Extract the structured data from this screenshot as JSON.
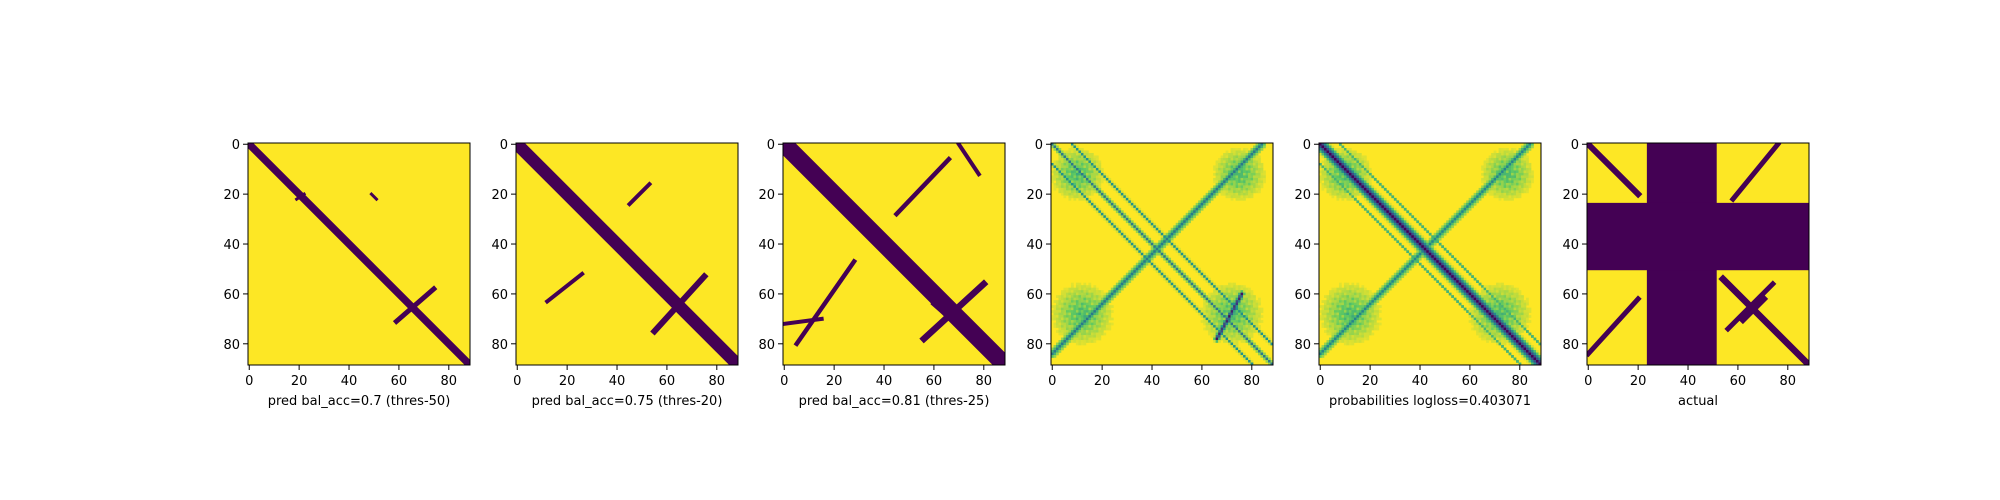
{
  "colors": {
    "background": "#fde725",
    "foreground": "#440154",
    "mid": "#21918c",
    "light": "#5ec962"
  },
  "chart_data": [
    {
      "type": "heatmap",
      "rendering": "binary",
      "xlabel": "pred bal_acc=0.7 (thres-50)",
      "xticks": [
        0,
        20,
        40,
        60,
        80
      ],
      "yticks": [
        0,
        20,
        40,
        60,
        80
      ],
      "xlim": [
        0,
        89
      ],
      "ylim": [
        89,
        0
      ],
      "colorscale": "viridis",
      "strokes": [
        {
          "from": [
            0,
            0
          ],
          "to": [
            88,
            88
          ],
          "width": 1.5
        },
        {
          "from": [
            19,
            22
          ],
          "to": [
            22,
            20
          ],
          "width": 0.6
        },
        {
          "from": [
            49,
            20
          ],
          "to": [
            51,
            22
          ],
          "width": 0.6
        },
        {
          "from": [
            59,
            71
          ],
          "to": [
            74,
            58
          ],
          "width": 1.0
        }
      ]
    },
    {
      "type": "heatmap",
      "rendering": "binary",
      "xlabel": "pred bal_acc=0.75 (thres-20)",
      "xticks": [
        0,
        20,
        40,
        60,
        80
      ],
      "yticks": [
        0,
        20,
        40,
        60,
        80
      ],
      "xlim": [
        0,
        89
      ],
      "ylim": [
        89,
        0
      ],
      "colorscale": "viridis",
      "strokes": [
        {
          "from": [
            0,
            0
          ],
          "to": [
            88,
            88
          ],
          "width": 2.5
        },
        {
          "from": [
            45,
            24
          ],
          "to": [
            53,
            16
          ],
          "width": 0.8
        },
        {
          "from": [
            12,
            63
          ],
          "to": [
            26,
            52
          ],
          "width": 0.8
        },
        {
          "from": [
            55,
            75
          ],
          "to": [
            75,
            53
          ],
          "width": 1.2
        },
        {
          "from": [
            60,
            62
          ],
          "to": [
            72,
            74
          ],
          "width": 1.0
        }
      ]
    },
    {
      "type": "heatmap",
      "rendering": "binary",
      "xlabel": "pred bal_acc=0.81 (thres-25)",
      "xticks": [
        0,
        20,
        40,
        60,
        80
      ],
      "yticks": [
        0,
        20,
        40,
        60,
        80
      ],
      "xlim": [
        0,
        89
      ],
      "ylim": [
        89,
        0
      ],
      "colorscale": "viridis",
      "strokes": [
        {
          "from": [
            0,
            0
          ],
          "to": [
            88,
            88
          ],
          "width": 3.5
        },
        {
          "from": [
            45,
            28
          ],
          "to": [
            66,
            6
          ],
          "width": 0.9
        },
        {
          "from": [
            5,
            80
          ],
          "to": [
            28,
            47
          ],
          "width": 0.9
        },
        {
          "from": [
            56,
            78
          ],
          "to": [
            80,
            56
          ],
          "width": 1.3
        },
        {
          "from": [
            60,
            64
          ],
          "to": [
            76,
            78
          ],
          "width": 1.0
        },
        {
          "from": [
            0,
            72
          ],
          "to": [
            15,
            70
          ],
          "width": 0.8
        },
        {
          "from": [
            70,
            0
          ],
          "to": [
            78,
            12
          ],
          "width": 0.8
        }
      ]
    },
    {
      "type": "heatmap",
      "rendering": "probability",
      "xlabel": "",
      "xticks": [
        0,
        20,
        40,
        60,
        80
      ],
      "yticks": [
        0,
        20,
        40,
        60,
        80
      ],
      "xlim": [
        0,
        89
      ],
      "ylim": [
        89,
        0
      ],
      "colorscale": "viridis",
      "strokes": [
        {
          "from": [
            0,
            0
          ],
          "to": [
            88,
            88
          ],
          "width": 1.0,
          "intensity": 0.55
        },
        {
          "from": [
            8,
            0
          ],
          "to": [
            88,
            80
          ],
          "width": 0.8,
          "intensity": 0.45
        },
        {
          "from": [
            0,
            8
          ],
          "to": [
            80,
            88
          ],
          "width": 0.8,
          "intensity": 0.45
        },
        {
          "from": [
            0,
            84
          ],
          "to": [
            84,
            0
          ],
          "width": 2.0,
          "intensity": 0.55
        },
        {
          "from": [
            66,
            78
          ],
          "to": [
            76,
            60
          ],
          "width": 1.5,
          "intensity": 0.9
        }
      ],
      "blobs": [
        {
          "center": [
            10,
            12
          ],
          "radius": 12
        },
        {
          "center": [
            75,
            12
          ],
          "radius": 12
        },
        {
          "center": [
            12,
            68
          ],
          "radius": 14
        },
        {
          "center": [
            72,
            68
          ],
          "radius": 14
        }
      ]
    },
    {
      "type": "heatmap",
      "rendering": "probability",
      "xlabel": "probabilities logloss=0.403071",
      "xticks": [
        0,
        20,
        40,
        60,
        80
      ],
      "yticks": [
        0,
        20,
        40,
        60,
        80
      ],
      "xlim": [
        0,
        89
      ],
      "ylim": [
        89,
        0
      ],
      "colorscale": "viridis",
      "strokes": [
        {
          "from": [
            0,
            0
          ],
          "to": [
            88,
            88
          ],
          "width": 3.0,
          "intensity": 1.0
        },
        {
          "from": [
            0,
            84
          ],
          "to": [
            84,
            0
          ],
          "width": 2.0,
          "intensity": 0.5
        },
        {
          "from": [
            8,
            0
          ],
          "to": [
            88,
            80
          ],
          "width": 0.6,
          "intensity": 0.3
        },
        {
          "from": [
            0,
            8
          ],
          "to": [
            80,
            88
          ],
          "width": 0.6,
          "intensity": 0.3
        }
      ],
      "blobs": [
        {
          "center": [
            10,
            12
          ],
          "radius": 12
        },
        {
          "center": [
            75,
            12
          ],
          "radius": 12
        },
        {
          "center": [
            12,
            68
          ],
          "radius": 14
        },
        {
          "center": [
            72,
            68
          ],
          "radius": 14
        }
      ]
    },
    {
      "type": "heatmap",
      "rendering": "binary",
      "xlabel": "actual",
      "xticks": [
        0,
        20,
        40,
        60,
        80
      ],
      "yticks": [
        0,
        20,
        40,
        60,
        80
      ],
      "xlim": [
        0,
        89
      ],
      "ylim": [
        89,
        0
      ],
      "colorscale": "viridis",
      "bands": [
        {
          "axis": "x",
          "from": 24,
          "to": 52
        },
        {
          "axis": "y",
          "from": 24,
          "to": 51
        }
      ],
      "strokes": [
        {
          "from": [
            0,
            0
          ],
          "to": [
            20,
            20
          ],
          "width": 1.2
        },
        {
          "from": [
            58,
            22
          ],
          "to": [
            76,
            0
          ],
          "width": 1.0
        },
        {
          "from": [
            0,
            84
          ],
          "to": [
            20,
            62
          ],
          "width": 1.0
        },
        {
          "from": [
            54,
            54
          ],
          "to": [
            88,
            88
          ],
          "width": 1.3
        },
        {
          "from": [
            56,
            74
          ],
          "to": [
            74,
            56
          ],
          "width": 1.0
        },
        {
          "from": [
            62,
            70
          ],
          "to": [
            70,
            62
          ],
          "width": 1.5
        }
      ]
    }
  ]
}
